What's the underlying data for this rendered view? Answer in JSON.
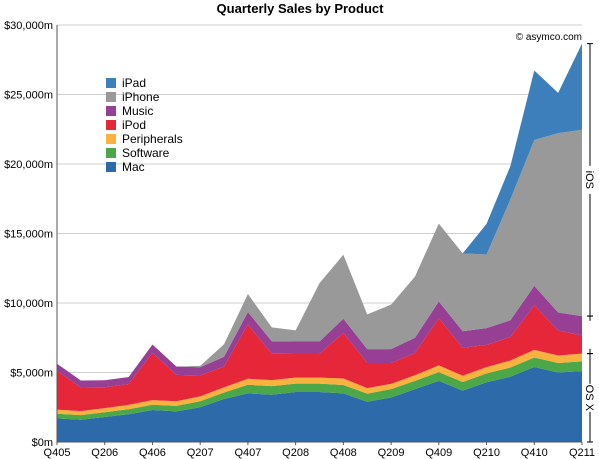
{
  "chart_data": {
    "type": "area",
    "stacked": true,
    "title": "Quarterly Sales by Product",
    "credit": "© asymco.com",
    "xlabel": "",
    "ylabel": "",
    "ylim": [
      0,
      30000
    ],
    "yticks": [
      "$0m",
      "$5,000m",
      "$10,000m",
      "$15,000m",
      "$20,000m",
      "$25,000m",
      "$30,000m"
    ],
    "ytick_values": [
      0,
      5000,
      10000,
      15000,
      20000,
      25000,
      30000
    ],
    "xtick_labels": [
      "Q405",
      "Q206",
      "Q406",
      "Q207",
      "Q407",
      "Q208",
      "Q408",
      "Q209",
      "Q409",
      "Q210",
      "Q410",
      "Q211"
    ],
    "legend_position": "top-left",
    "grid": "horizontal",
    "x": [
      "Q405",
      "Q106",
      "Q206",
      "Q306",
      "Q406",
      "Q107",
      "Q207",
      "Q307",
      "Q407",
      "Q108",
      "Q208",
      "Q308",
      "Q408",
      "Q109",
      "Q209",
      "Q309",
      "Q409",
      "Q110",
      "Q210",
      "Q310",
      "Q410",
      "Q111",
      "Q211"
    ],
    "series": [
      {
        "name": "Mac",
        "color": "#2c6aa9",
        "values": [
          1700,
          1600,
          1800,
          2000,
          2300,
          2200,
          2500,
          3100,
          3500,
          3400,
          3600,
          3600,
          3500,
          2900,
          3200,
          3800,
          4400,
          3700,
          4300,
          4700,
          5400,
          5000,
          5100
        ]
      },
      {
        "name": "Software",
        "color": "#4ca749",
        "values": [
          330,
          330,
          340,
          360,
          380,
          400,
          430,
          460,
          620,
          620,
          600,
          600,
          600,
          580,
          600,
          600,
          630,
          620,
          640,
          660,
          680,
          680,
          700
        ]
      },
      {
        "name": "Peripherals",
        "color": "#f8b23f",
        "values": [
          300,
          290,
          300,
          310,
          330,
          330,
          350,
          370,
          430,
          430,
          430,
          430,
          470,
          400,
          380,
          400,
          480,
          450,
          450,
          500,
          550,
          540,
          560
        ]
      },
      {
        "name": "iPod",
        "color": "#e62639",
        "values": [
          2800,
          1700,
          1500,
          1500,
          3400,
          1900,
          1500,
          1500,
          3900,
          1900,
          1700,
          1700,
          3300,
          1800,
          1500,
          1600,
          3400,
          2000,
          1600,
          1700,
          3200,
          1800,
          1300
        ]
      },
      {
        "name": "Music",
        "color": "#963f95",
        "values": [
          500,
          500,
          500,
          500,
          600,
          600,
          600,
          700,
          900,
          900,
          900,
          900,
          1000,
          1000,
          1000,
          1100,
          1200,
          1200,
          1200,
          1200,
          1400,
          1300,
          1400
        ]
      },
      {
        "name": "iPhone",
        "color": "#999999",
        "values": [
          0,
          0,
          0,
          0,
          0,
          0,
          100,
          900,
          1300,
          1000,
          800,
          4200,
          4600,
          2500,
          3200,
          4400,
          5600,
          5600,
          5300,
          8700,
          10500,
          12900,
          13400
        ]
      },
      {
        "name": "iPad",
        "color": "#3d7fba",
        "values": [
          0,
          0,
          0,
          0,
          0,
          0,
          0,
          0,
          0,
          0,
          0,
          0,
          0,
          0,
          0,
          0,
          0,
          0,
          2200,
          2400,
          5000,
          2900,
          6200
        ]
      }
    ],
    "brackets": [
      {
        "label": "iOS"
      },
      {
        "label": "OS X"
      }
    ]
  }
}
